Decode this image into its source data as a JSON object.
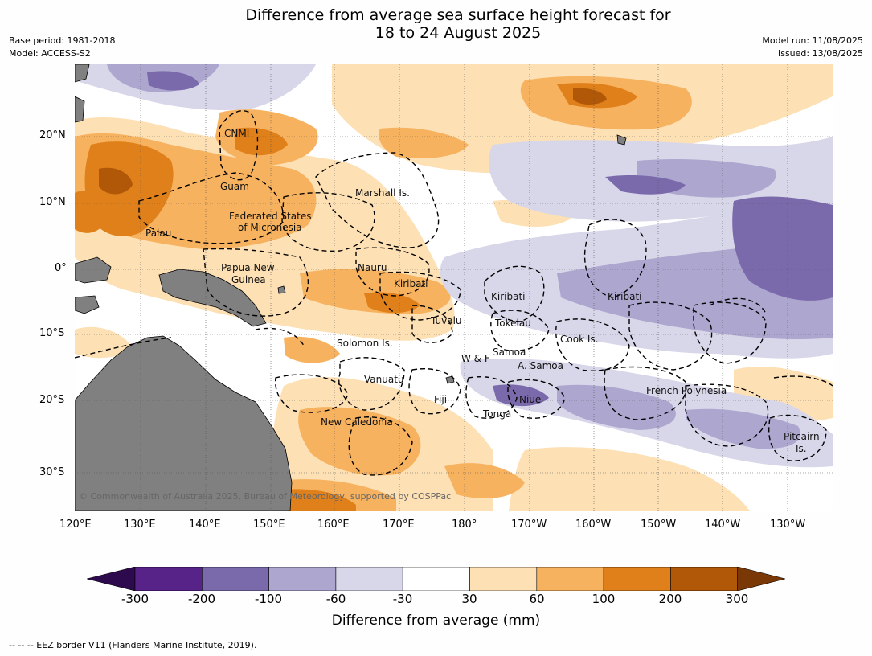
{
  "title_line1": "Difference from average sea surface height forecast for",
  "title_line2": "18 to 24 August 2025",
  "base_period": "Base period: 1981-2018",
  "model": "Model: ACCESS-S2",
  "model_run": "Model run: 11/08/2025",
  "issued": "Issued: 13/08/2025",
  "lon_labels": [
    "120°E",
    "130°E",
    "140°E",
    "150°E",
    "160°E",
    "170°E",
    "180°",
    "170°W",
    "160°W",
    "150°W",
    "140°W",
    "130°W"
  ],
  "lat_labels": [
    "20°N",
    "10°N",
    "0°",
    "10°S",
    "20°S",
    "30°S"
  ],
  "regions": [
    "CNMI",
    "Guam",
    "Marshall Is.",
    "Federated States",
    "of Micronesia",
    "Palau",
    "Papua New",
    "Guinea",
    "Nauru",
    "Kiribati",
    "Kiribati",
    "Kiribati",
    "Tuvalu",
    "Tokelau",
    "Solomon Is.",
    "Cook Is.",
    "Samoa",
    "W & F",
    "A. Samoa",
    "Vanuatu",
    "Fiji",
    "Niue",
    "Tonga",
    "French Polynesia",
    "New Caledonia",
    "Pitcairn",
    "Is."
  ],
  "copyright": "© Commonwealth of Australia 2025, Bureau of Meteorology, supported by COSPPac",
  "colorbar": {
    "ticks": [
      "-300",
      "-200",
      "-100",
      "-60",
      "-30",
      "30",
      "60",
      "100",
      "200",
      "300"
    ],
    "label": "Difference from average (mm)",
    "colors": [
      "#2d0a4e",
      "#572389",
      "#7b6aab",
      "#ada6cf",
      "#d8d7ea",
      "#ffffff",
      "#fde0b4",
      "#f7b25f",
      "#e0801a",
      "#b05708",
      "#7a3806"
    ]
  },
  "footnote": "--  --  -- EEZ border V11 (Flanders Marine Institute, 2019)."
}
